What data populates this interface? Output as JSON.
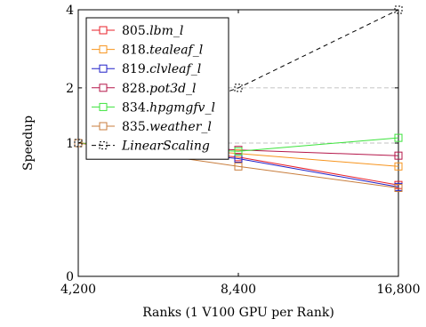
{
  "chart_data": {
    "type": "line",
    "xlabel": "Ranks (1 V100 GPU per Rank)",
    "ylabel": "Speedup",
    "x_ticks": [
      4200,
      8400,
      16800
    ],
    "x_tick_labels": [
      "4,200",
      "8,400",
      "16,800"
    ],
    "y_ticks": [
      0,
      1,
      2,
      4
    ],
    "y_tick_labels": [
      "0",
      "1",
      "2",
      "4"
    ],
    "xlim": [
      4200,
      16800
    ],
    "ylim": [
      0,
      4
    ],
    "x_scale": "log2",
    "y_scale": "sqrt",
    "grid": "horizontal dashed at y ticks",
    "legend_position": "top-left",
    "marker": "square",
    "series": [
      {
        "num": "805.",
        "name": "lbm_l",
        "display": "lbm_l",
        "color": "#e8202a",
        "x": [
          4200,
          8400,
          16800
        ],
        "y": [
          1.0,
          0.8,
          0.47
        ]
      },
      {
        "num": "818.",
        "name": "tealeaf_l",
        "display": "tealeaf_l",
        "color": "#f7941d",
        "x": [
          4200,
          8400,
          16800
        ],
        "y": [
          1.0,
          0.85,
          0.68
        ]
      },
      {
        "num": "819.",
        "name": "clvleaf_l",
        "display": "clvleaf_l",
        "color": "#2020c8",
        "x": [
          4200,
          8400,
          16800
        ],
        "y": [
          1.0,
          0.78,
          0.45
        ]
      },
      {
        "num": "828.",
        "name": "pot3d_l",
        "display": "pot3d_l",
        "color": "#b5174a",
        "x": [
          4200,
          8400,
          16800
        ],
        "y": [
          1.0,
          0.9,
          0.82
        ]
      },
      {
        "num": "834.",
        "name": "hpgmgfv_l",
        "display": "hpgmgfv_l",
        "color": "#3ce33c",
        "x": [
          4200,
          8400,
          16800
        ],
        "y": [
          1.0,
          0.88,
          1.08
        ]
      },
      {
        "num": "835.",
        "name": "weather_l",
        "display": "weather_l",
        "color": "#c87d3c",
        "x": [
          4200,
          8400,
          16800
        ],
        "y": [
          1.0,
          0.68,
          0.44
        ]
      },
      {
        "num": "",
        "name": "LinearScaling",
        "display": "LinearScaling",
        "color": "#000000",
        "dashed": true,
        "x": [
          4200,
          8400,
          16800
        ],
        "y": [
          1.0,
          2.0,
          4.0
        ]
      }
    ]
  }
}
